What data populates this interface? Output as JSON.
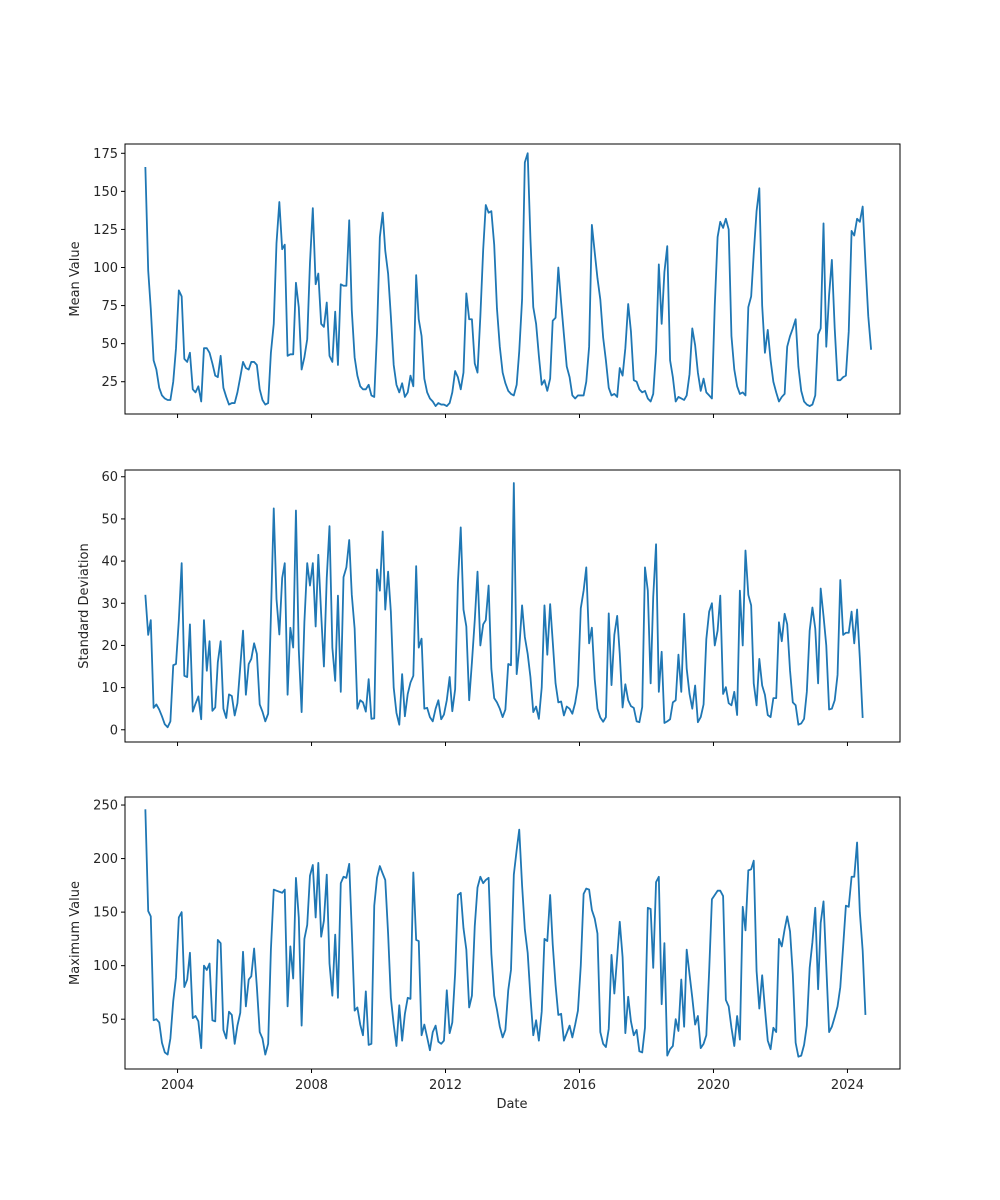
{
  "figure": {
    "xlabel": "Date",
    "line_color": "#1f77b4",
    "x_ticks": [
      "2004",
      "2008",
      "2012",
      "2016",
      "2020",
      "2024"
    ],
    "xlim": [
      "2002-06-07",
      "2025-07-27"
    ]
  },
  "chart_data": [
    {
      "type": "line",
      "ylabel": "Mean Value",
      "ylim": [
        3.8,
        181.1
      ],
      "y_ticks": [
        25,
        50,
        75,
        100,
        125,
        150,
        175
      ],
      "grid": false,
      "legend": "none",
      "x_start": "2003-01",
      "x_step": "1 month",
      "values": [
        166,
        98,
        73,
        39,
        33,
        21,
        16,
        14,
        13,
        13,
        25,
        47,
        85,
        81,
        40,
        38,
        44,
        20,
        18,
        22,
        12,
        47,
        47,
        44,
        37,
        29,
        28,
        42,
        21,
        15,
        10,
        11,
        11,
        18,
        28,
        38,
        34,
        33,
        38,
        38,
        36,
        20,
        13,
        10,
        11,
        44,
        63,
        116,
        143,
        112,
        115,
        42,
        43,
        43,
        90,
        74,
        33,
        41,
        53,
        103,
        139,
        89,
        96,
        63,
        61,
        77,
        42,
        38,
        71,
        36,
        89,
        88,
        88,
        131,
        72,
        41,
        29,
        22,
        20,
        20,
        23,
        16,
        15,
        57,
        120,
        136,
        111,
        96,
        68,
        36,
        23,
        18,
        24,
        15,
        18,
        29,
        22,
        95,
        66,
        55,
        27,
        18,
        14,
        12,
        9,
        11,
        10,
        10,
        9,
        11,
        18,
        32,
        28,
        20,
        31,
        83,
        66,
        66,
        37,
        31,
        68,
        112,
        141,
        136,
        137,
        115,
        73,
        48,
        31,
        24,
        19,
        17,
        16,
        23,
        45,
        79,
        169,
        175,
        119,
        74,
        63,
        42,
        23,
        26,
        19,
        27,
        65,
        67,
        100,
        77,
        56,
        35,
        28,
        16,
        14,
        16,
        16,
        16,
        25,
        48,
        128,
        110,
        93,
        79,
        54,
        39,
        21,
        16,
        17,
        15,
        34,
        29,
        47,
        76,
        58,
        26,
        25,
        20,
        18,
        19,
        14,
        12,
        17,
        45,
        102,
        63,
        97,
        114,
        39,
        28,
        12,
        15,
        14,
        13,
        16,
        30,
        60,
        49,
        31,
        19,
        27,
        18,
        16,
        14,
        75,
        120,
        130,
        126,
        132,
        125,
        55,
        33,
        22,
        17,
        18,
        16,
        74,
        81,
        109,
        137,
        152,
        75,
        44,
        59,
        39,
        25,
        18,
        12,
        15,
        17,
        48,
        55,
        60,
        66,
        35,
        19,
        12,
        10,
        9,
        10,
        16,
        56,
        60,
        129,
        48,
        82,
        105,
        60,
        26,
        26,
        28,
        29,
        58,
        124,
        121,
        132,
        130,
        140,
        103,
        68,
        46
      ]
    },
    {
      "type": "line",
      "ylabel": "Standard Deviation",
      "ylim": [
        -2.9,
        61.6
      ],
      "y_ticks": [
        0,
        10,
        20,
        30,
        40,
        50,
        60
      ],
      "grid": false,
      "legend": "none",
      "x_start": "2003-01",
      "x_step": "1 month",
      "values": [
        32,
        22.5,
        26,
        5.2,
        6,
        4.8,
        3.2,
        1.3,
        0.6,
        2,
        15.3,
        15.6,
        26,
        39.5,
        12.8,
        12.5,
        25,
        4.3,
        6.2,
        7.9,
        2.5,
        26,
        14,
        21,
        4.5,
        5.3,
        16,
        21,
        5,
        2.8,
        8.4,
        8,
        3.4,
        6.3,
        15,
        23.5,
        8.3,
        15.6,
        16.8,
        20.5,
        18,
        6,
        4.3,
        2,
        3.8,
        27,
        52.5,
        31,
        22.6,
        36,
        39.5,
        8.3,
        24.2,
        19.5,
        52,
        19,
        4.2,
        25.5,
        39.5,
        34.2,
        39.5,
        24.5,
        41.5,
        27.5,
        15,
        36,
        48.3,
        19.5,
        11.6,
        31.8,
        9,
        36.2,
        38.5,
        45,
        32,
        24,
        5,
        7,
        6.5,
        4.3,
        12,
        2.6,
        2.7,
        38,
        33,
        47,
        28.5,
        37.5,
        28,
        10,
        4,
        1.2,
        13.2,
        3.2,
        8.5,
        11.2,
        12.8,
        38.8,
        19.5,
        21.6,
        5,
        5.2,
        3,
        2,
        5,
        7,
        2.5,
        3.6,
        7,
        12.5,
        4.4,
        9.6,
        34.8,
        48,
        28.5,
        24.5,
        7,
        16,
        26,
        37.5,
        20,
        25,
        26,
        34.2,
        14.5,
        7.5,
        6.5,
        5,
        3,
        4.8,
        15.6,
        15.3,
        58.5,
        13.2,
        19.2,
        29.5,
        22,
        18,
        12.5,
        4.2,
        5.5,
        2.6,
        10,
        29.5,
        17.8,
        29.8,
        21,
        11,
        6.5,
        6.7,
        3.4,
        5.5,
        5,
        3.8,
        6.4,
        10.5,
        28.8,
        33,
        38.5,
        20.5,
        24.2,
        12,
        5,
        2.9,
        1.9,
        3,
        27.6,
        10.6,
        22.5,
        27,
        18,
        5.3,
        10.8,
        7,
        5.6,
        5.2,
        2,
        1.8,
        5.4,
        38.5,
        33,
        11,
        31.5,
        44,
        9,
        18.5,
        1.6,
        2,
        2.5,
        6.5,
        7,
        17.8,
        9,
        27.5,
        14.5,
        8.5,
        5,
        10.5,
        1.8,
        3,
        6,
        21.5,
        28,
        30,
        20,
        23.5,
        31.8,
        8.5,
        10.1,
        6.3,
        5.8,
        9,
        3.5,
        33,
        20,
        42.5,
        32,
        29.5,
        11,
        5.8,
        16.8,
        10.5,
        8.3,
        3.5,
        3,
        7.5,
        7.5,
        25.5,
        21,
        27.5,
        25,
        14,
        6.5,
        5.8,
        1.2,
        1.5,
        2.6,
        9,
        23.5,
        29,
        24,
        11,
        33.5,
        27,
        20,
        4.8,
        5,
        7,
        13,
        35.5,
        22.5,
        23,
        23,
        28,
        20.5,
        28.5,
        17,
        2.8
      ]
    },
    {
      "type": "line",
      "ylabel": "Maximum Value",
      "ylim": [
        3.5,
        257.5
      ],
      "y_ticks": [
        50,
        100,
        150,
        200,
        250
      ],
      "grid": false,
      "legend": "none",
      "x_start": "2003-01",
      "x_step": "1 month",
      "values": [
        246,
        151,
        146,
        49,
        50,
        47,
        28,
        19,
        17,
        32,
        67,
        89,
        145,
        150,
        80,
        87,
        112,
        51,
        53,
        48,
        23,
        100,
        96,
        102,
        49,
        48,
        124,
        121,
        40,
        32,
        57,
        54,
        27,
        44,
        56,
        113,
        62,
        87,
        90,
        116,
        80,
        38,
        32,
        17,
        27,
        115,
        171,
        170,
        169,
        168,
        171,
        62,
        118,
        88,
        182,
        145,
        44,
        125,
        138,
        184,
        194,
        145,
        196,
        127,
        142,
        185,
        102,
        72,
        129,
        70,
        177,
        183,
        182,
        195,
        132,
        58,
        61,
        45,
        35,
        76,
        26,
        27,
        156,
        182,
        193,
        186,
        180,
        130,
        70,
        45,
        25,
        63,
        30,
        55,
        70,
        69,
        187,
        124,
        123,
        35,
        45,
        33,
        21,
        38,
        44,
        29,
        27,
        30,
        77,
        37,
        47,
        93,
        166,
        168,
        135,
        115,
        61,
        72,
        137,
        173,
        183,
        177,
        180,
        182,
        111,
        72,
        59,
        43,
        33,
        40,
        77,
        96,
        185,
        208,
        227,
        175,
        134,
        112,
        71,
        35,
        49,
        30,
        57,
        125,
        123,
        166,
        120,
        82,
        54,
        55,
        30,
        37,
        44,
        33,
        45,
        58,
        100,
        167,
        172,
        171,
        152,
        144,
        130,
        38,
        27,
        24,
        41,
        110,
        74,
        108,
        141,
        108,
        37,
        71,
        48,
        35,
        40,
        20,
        19,
        42,
        154,
        153,
        98,
        178,
        183,
        64,
        121,
        16,
        22,
        25,
        50,
        39,
        87,
        43,
        115,
        92,
        70,
        45,
        53,
        23,
        27,
        35,
        95,
        162,
        166,
        170,
        170,
        165,
        68,
        62,
        42,
        25,
        53,
        31,
        155,
        133,
        189,
        190,
        198,
        95,
        60,
        91,
        60,
        30,
        22,
        42,
        38,
        125,
        118,
        134,
        146,
        132,
        92,
        28,
        15,
        16,
        26,
        44,
        98,
        122,
        154,
        78,
        140,
        160,
        100,
        38,
        43,
        52,
        62,
        80,
        118,
        156,
        155,
        183,
        183,
        215,
        150,
        114,
        54
      ]
    }
  ]
}
